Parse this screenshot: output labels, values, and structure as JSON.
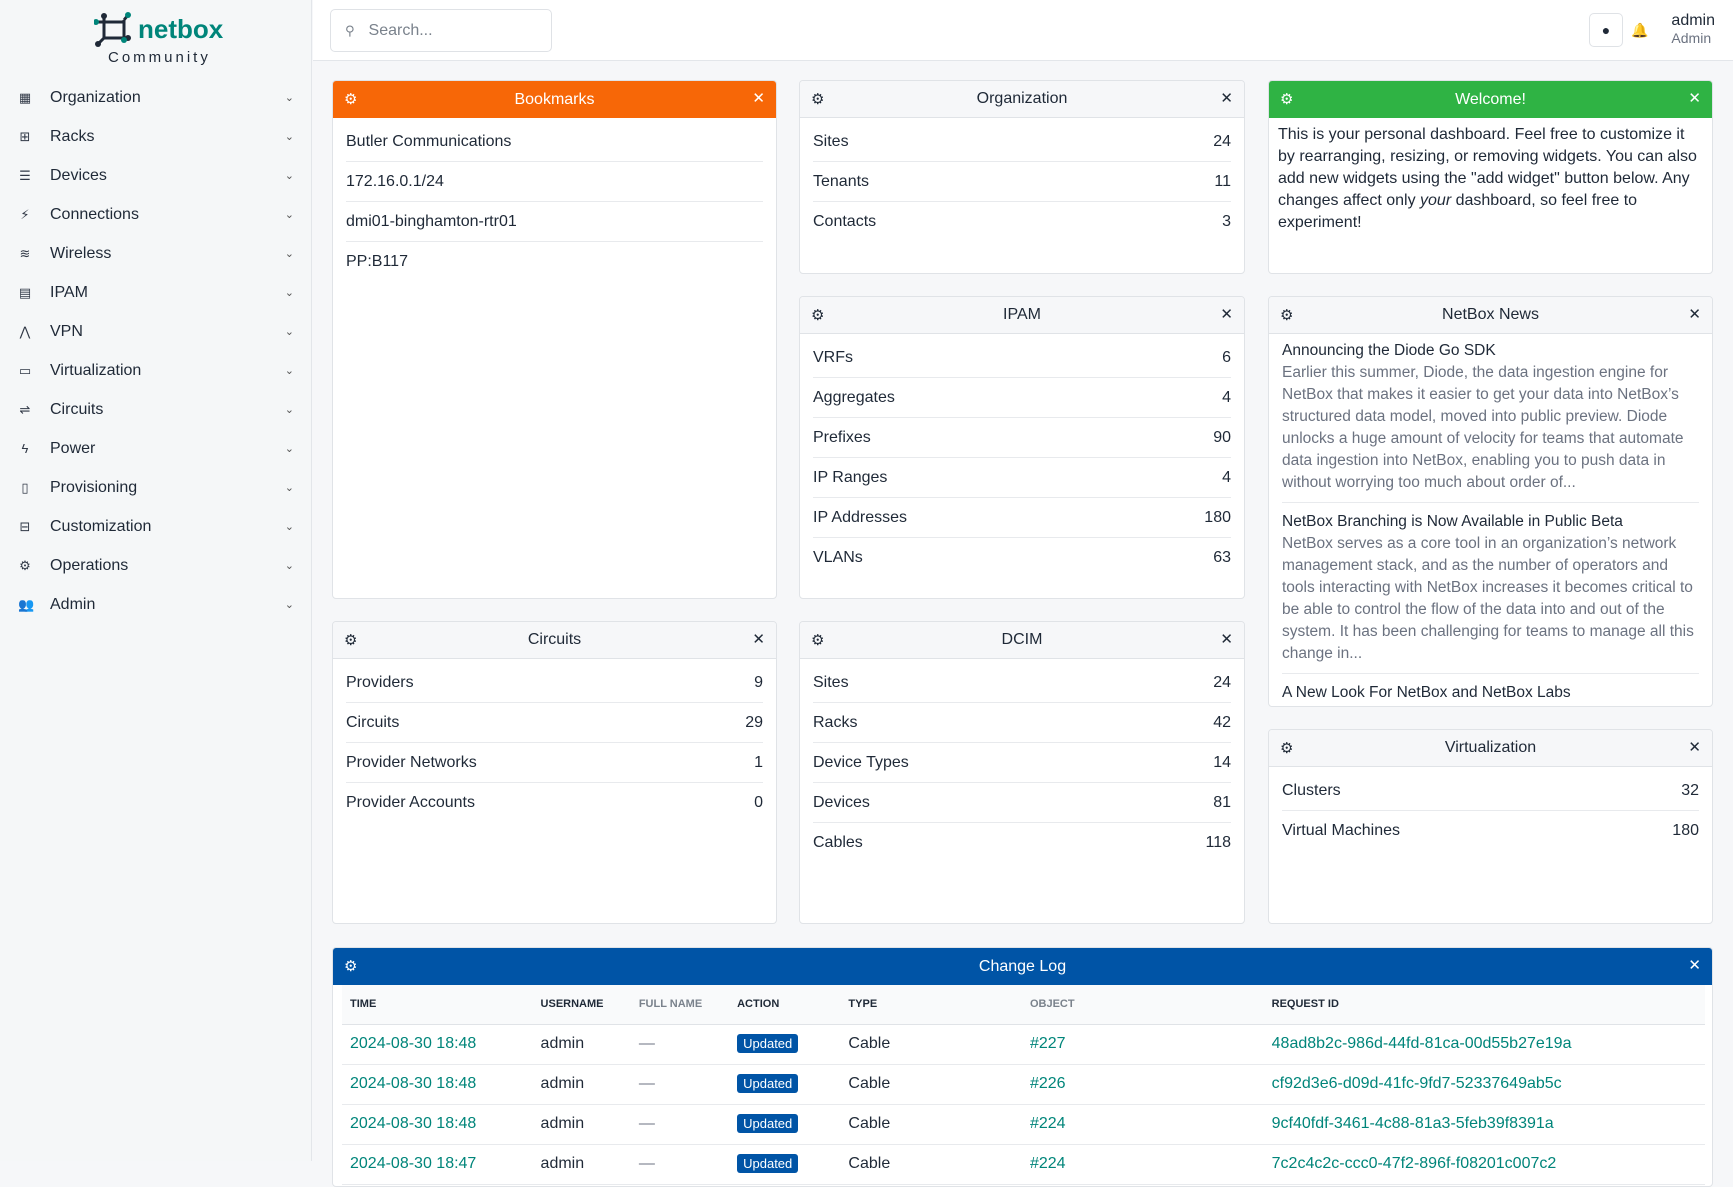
{
  "brand": {
    "name": "netbox",
    "edition": "Community",
    "color": "#00857a"
  },
  "sidebar": {
    "items": [
      {
        "label": "Organization",
        "icon": "building-icon"
      },
      {
        "label": "Racks",
        "icon": "rack-icon"
      },
      {
        "label": "Devices",
        "icon": "server-icon"
      },
      {
        "label": "Connections",
        "icon": "plug-icon"
      },
      {
        "label": "Wireless",
        "icon": "wifi-icon"
      },
      {
        "label": "IPAM",
        "icon": "ipam-icon"
      },
      {
        "label": "VPN",
        "icon": "vpn-icon"
      },
      {
        "label": "Virtualization",
        "icon": "monitor-icon"
      },
      {
        "label": "Circuits",
        "icon": "circuit-icon"
      },
      {
        "label": "Power",
        "icon": "bolt-icon"
      },
      {
        "label": "Provisioning",
        "icon": "file-icon"
      },
      {
        "label": "Customization",
        "icon": "toolbox-icon"
      },
      {
        "label": "Operations",
        "icon": "cogs-icon"
      },
      {
        "label": "Admin",
        "icon": "users-icon"
      }
    ]
  },
  "header": {
    "search_placeholder": "Search...",
    "user": "admin",
    "role": "Admin"
  },
  "widgets": {
    "bookmarks": {
      "title": "Bookmarks",
      "color": "#f76707",
      "items": [
        "Butler Communications",
        "172.16.0.1/24",
        "dmi01-binghamton-rtr01",
        "PP:B117"
      ]
    },
    "organization": {
      "title": "Organization",
      "rows": [
        [
          "Sites",
          "24"
        ],
        [
          "Tenants",
          "11"
        ],
        [
          "Contacts",
          "3"
        ]
      ]
    },
    "welcome": {
      "title": "Welcome!",
      "color": "#2fb344",
      "text_a": "This is your personal dashboard. Feel free to customize it by rearranging, resizing, or removing widgets. You can also add new widgets using the \"add widget\" button below. Any changes affect only ",
      "text_em": "your",
      "text_b": " dashboard, so feel free to experiment!"
    },
    "ipam": {
      "title": "IPAM",
      "rows": [
        [
          "VRFs",
          "6"
        ],
        [
          "Aggregates",
          "4"
        ],
        [
          "Prefixes",
          "90"
        ],
        [
          "IP Ranges",
          "4"
        ],
        [
          "IP Addresses",
          "180"
        ],
        [
          "VLANs",
          "63"
        ]
      ]
    },
    "news": {
      "title": "NetBox News",
      "items": [
        {
          "title": "Announcing the Diode Go SDK",
          "desc": "Earlier this summer, Diode, the data ingestion engine for NetBox that makes it easier to get your data into NetBox’s structured data model, moved into public preview. Diode unlocks a huge amount of velocity for teams that automate data ingestion into NetBox, enabling you to push data in without worrying too much about order of..."
        },
        {
          "title": "NetBox Branching is Now Available in Public Beta",
          "desc": "NetBox serves as a core tool in an organization’s network management stack, and as the number of operators and tools interacting with NetBox increases it becomes critical to be able to control the flow of the data into and out of the system. It has been challenging for teams to manage all this change in..."
        },
        {
          "title": "A New Look For NetBox and NetBox Labs",
          "desc": ""
        }
      ]
    },
    "circuits": {
      "title": "Circuits",
      "rows": [
        [
          "Providers",
          "9"
        ],
        [
          "Circuits",
          "29"
        ],
        [
          "Provider Networks",
          "1"
        ],
        [
          "Provider Accounts",
          "0"
        ]
      ]
    },
    "dcim": {
      "title": "DCIM",
      "rows": [
        [
          "Sites",
          "24"
        ],
        [
          "Racks",
          "42"
        ],
        [
          "Device Types",
          "14"
        ],
        [
          "Devices",
          "81"
        ],
        [
          "Cables",
          "118"
        ]
      ]
    },
    "virtualization": {
      "title": "Virtualization",
      "rows": [
        [
          "Clusters",
          "32"
        ],
        [
          "Virtual Machines",
          "180"
        ]
      ]
    },
    "changelog": {
      "title": "Change Log",
      "color": "#0054a6",
      "columns": [
        "TIME",
        "USERNAME",
        "FULL NAME",
        "ACTION",
        "TYPE",
        "OBJECT",
        "REQUEST ID"
      ],
      "rows": [
        [
          "2024-08-30 18:48",
          "admin",
          "—",
          "Updated",
          "Cable",
          "#227",
          "48ad8b2c-986d-44fd-81ca-00d55b27e19a"
        ],
        [
          "2024-08-30 18:48",
          "admin",
          "—",
          "Updated",
          "Cable",
          "#226",
          "cf92d3e6-d09d-41fc-9fd7-52337649ab5c"
        ],
        [
          "2024-08-30 18:48",
          "admin",
          "—",
          "Updated",
          "Cable",
          "#224",
          "9cf40fdf-3461-4c88-81a3-5feb39f8391a"
        ],
        [
          "2024-08-30 18:47",
          "admin",
          "—",
          "Updated",
          "Cable",
          "#224",
          "7c2c4c2c-ccc0-47f2-896f-f08201c007c2"
        ]
      ]
    }
  }
}
